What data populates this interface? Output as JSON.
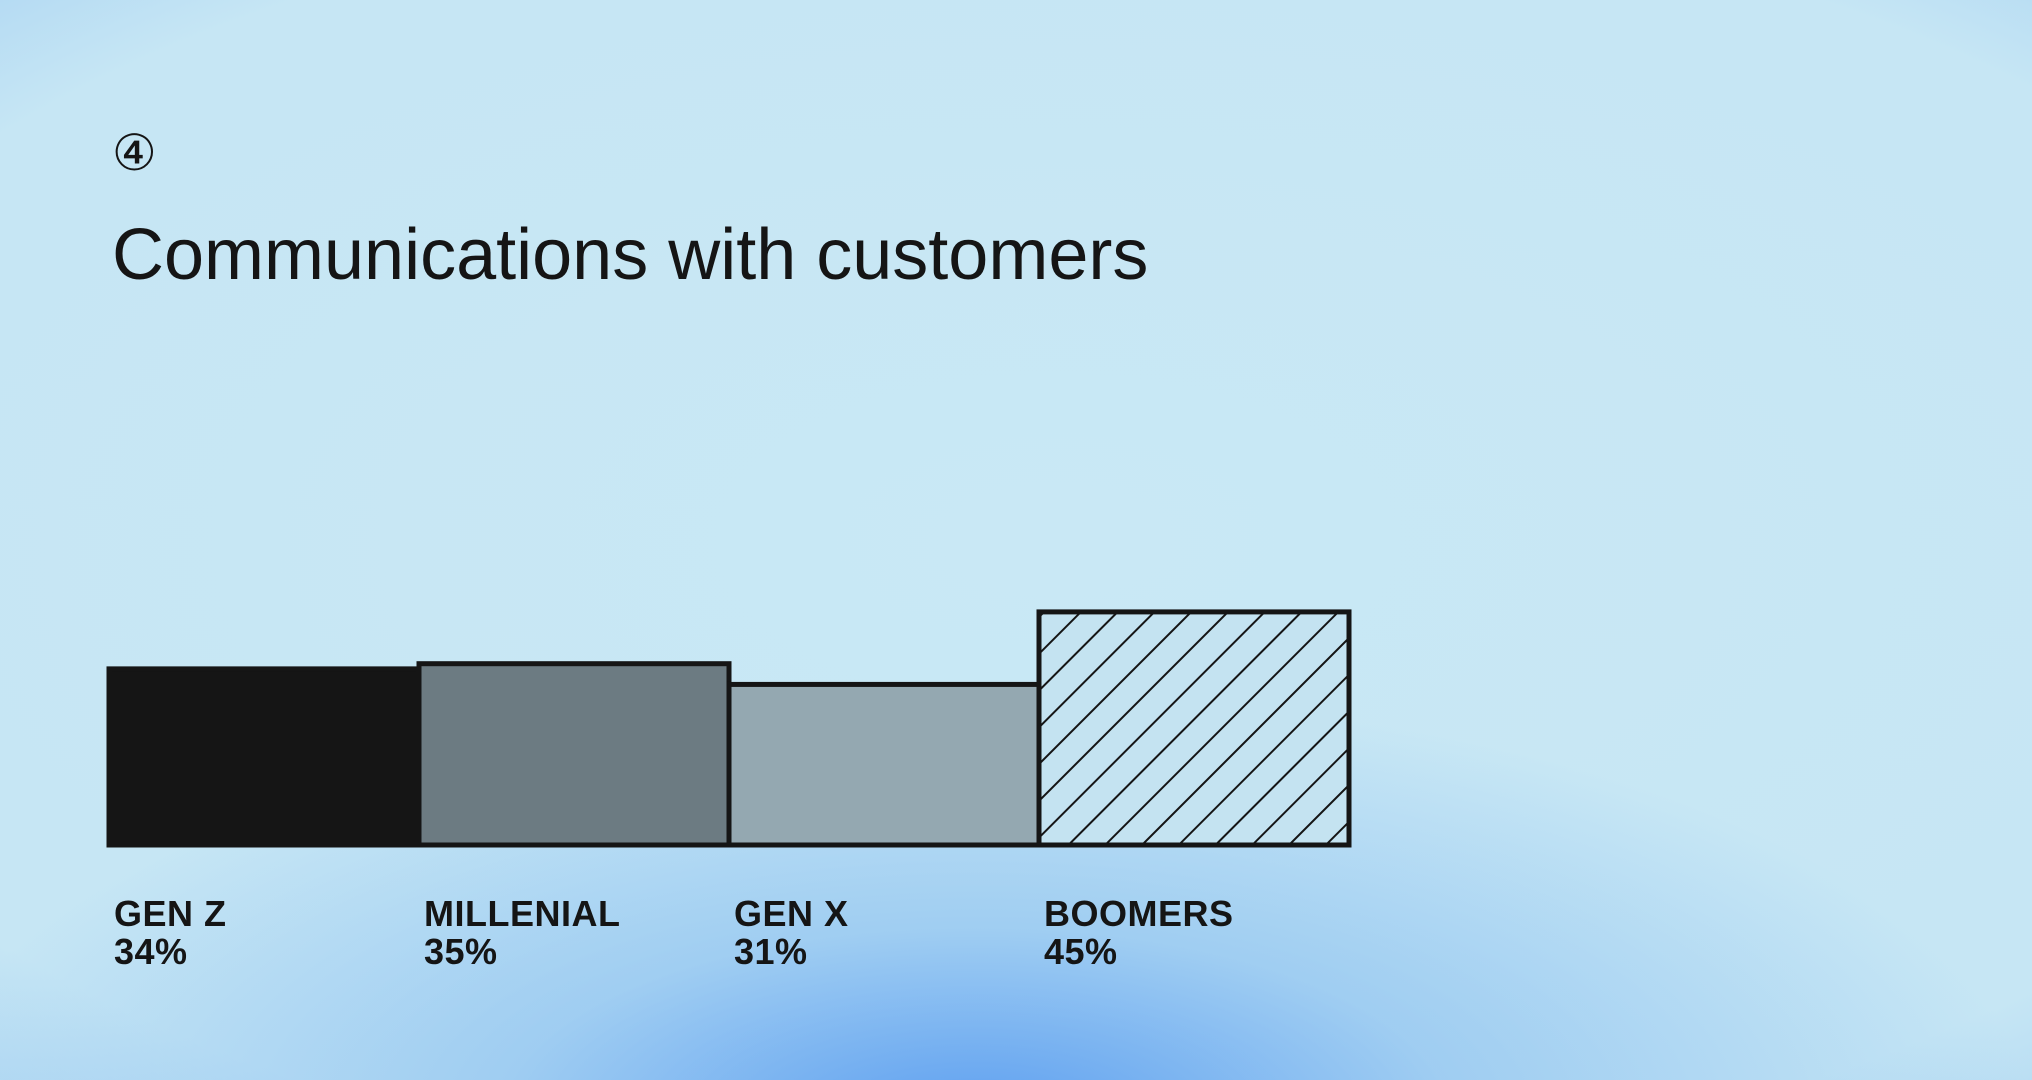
{
  "step": "④",
  "chart_data": {
    "type": "bar",
    "title": "Communications with customers",
    "categories": [
      "GEN Z",
      "MILLENIAL",
      "GEN X",
      "BOOMERS"
    ],
    "values": [
      34,
      35,
      31,
      45
    ],
    "value_labels": [
      "34%",
      "35%",
      "31%",
      "45%"
    ],
    "colors": [
      "#151515",
      "#6c7b82",
      "#94a8b1",
      "#c4e3f1"
    ],
    "patterns": [
      null,
      null,
      null,
      "diagonal"
    ],
    "stroke": "#151515"
  }
}
